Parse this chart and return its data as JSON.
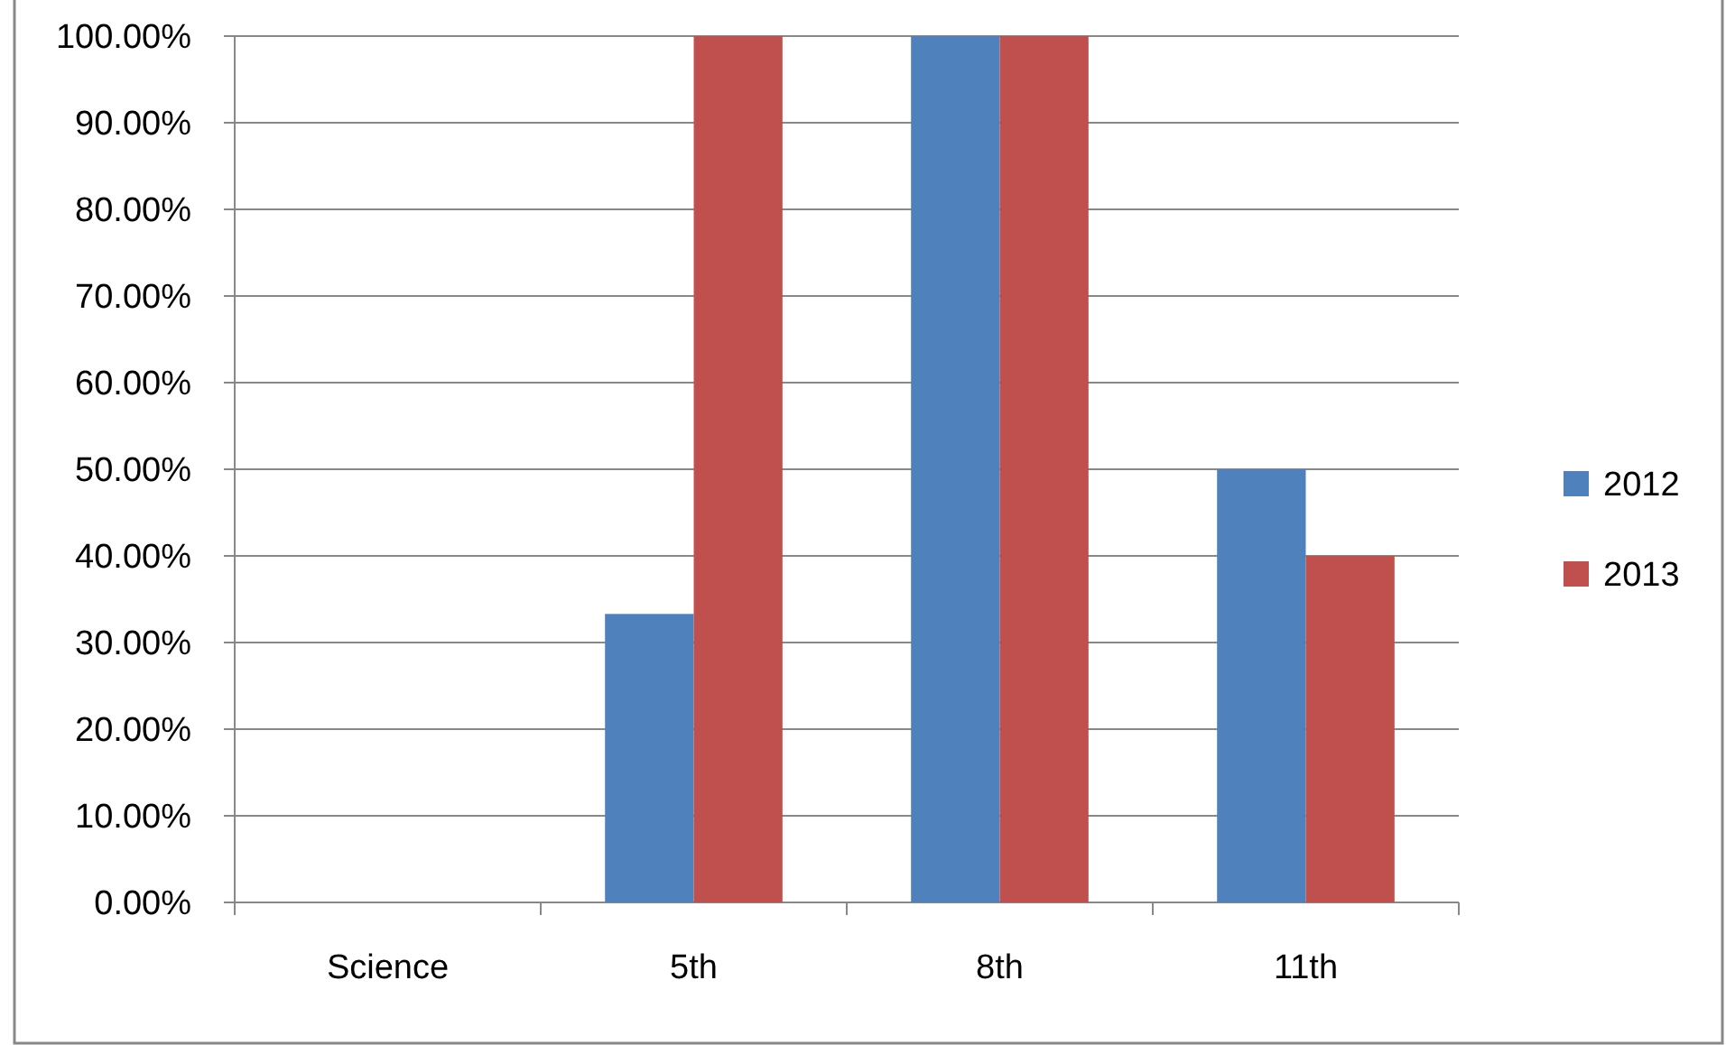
{
  "chart_data": {
    "type": "bar",
    "categories": [
      "Science",
      "5th",
      "8th",
      "11th"
    ],
    "series": [
      {
        "name": "2012",
        "color": "#4f81bd",
        "values": [
          null,
          33.3,
          100,
          50
        ]
      },
      {
        "name": "2013",
        "color": "#c0504d",
        "values": [
          null,
          100,
          100,
          40
        ]
      }
    ],
    "ylim": [
      0,
      100
    ],
    "yticks": [
      {
        "value": 0,
        "label": "0.00%"
      },
      {
        "value": 10,
        "label": "10.00%"
      },
      {
        "value": 20,
        "label": "20.00%"
      },
      {
        "value": 30,
        "label": "30.00%"
      },
      {
        "value": 40,
        "label": "40.00%"
      },
      {
        "value": 50,
        "label": "50.00%"
      },
      {
        "value": 60,
        "label": "60.00%"
      },
      {
        "value": 70,
        "label": "70.00%"
      },
      {
        "value": 80,
        "label": "80.00%"
      },
      {
        "value": 90,
        "label": "90.00%"
      },
      {
        "value": 100,
        "label": "100.00%"
      }
    ],
    "grid": "y",
    "legend": "right"
  }
}
